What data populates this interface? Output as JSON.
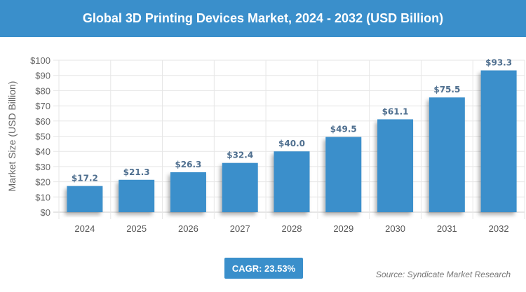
{
  "title": "Global 3D Printing Devices Market, 2024 - 2032 (USD Billion)",
  "cagr_label": "CAGR: 23.53%",
  "source": "Source: Syndicate Market Research",
  "colors": {
    "bar": "#3a8fcb",
    "header": "#3a8fcb",
    "data_label": "#4f6f8f"
  },
  "chart_data": {
    "type": "bar",
    "title": "Global 3D Printing Devices Market, 2024 - 2032 (USD Billion)",
    "xlabel": "",
    "ylabel": "Market Size (USD Billion)",
    "categories": [
      "2024",
      "2025",
      "2026",
      "2027",
      "2028",
      "2029",
      "2030",
      "2031",
      "2032"
    ],
    "values": [
      17.2,
      21.3,
      26.3,
      32.4,
      40.0,
      49.5,
      61.1,
      75.5,
      93.3
    ],
    "data_labels": [
      "$17.2",
      "$21.3",
      "$26.3",
      "$32.4",
      "$40.0",
      "$49.5",
      "$61.1",
      "$75.5",
      "$93.3"
    ],
    "yticks": [
      "$0",
      "$10",
      "$20",
      "$30",
      "$40",
      "$50",
      "$60",
      "$70",
      "$80",
      "$90",
      "$100"
    ],
    "ylim": [
      0,
      100
    ],
    "grid": true,
    "legend": "none"
  }
}
